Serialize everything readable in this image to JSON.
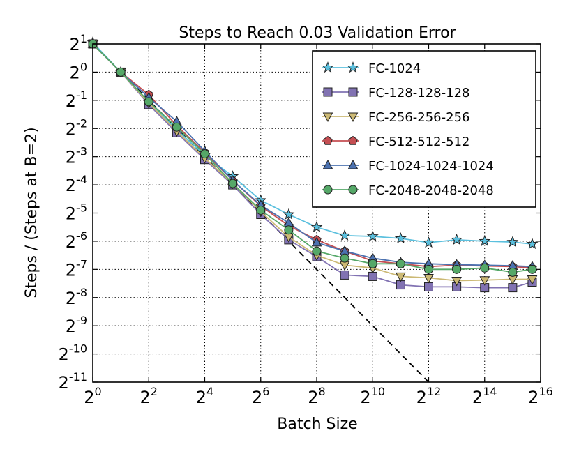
{
  "chart_data": {
    "type": "line",
    "title": "Steps to Reach 0.03 Validation Error",
    "xlabel": "Batch Size",
    "ylabel": "Steps / (Steps at B=2)",
    "x_scale": "log2",
    "y_scale": "log2",
    "xlim": [
      0,
      16
    ],
    "ylim": [
      -11,
      1
    ],
    "grid": true,
    "legend_position": "upper right",
    "x_tick_base": "2",
    "x_tick_exponents": [
      "0",
      "2",
      "4",
      "6",
      "8",
      "10",
      "12",
      "14",
      "16"
    ],
    "y_tick_base": "2",
    "y_tick_exponents": [
      "1",
      "0",
      "-1",
      "-2",
      "-3",
      "-4",
      "-5",
      "-6",
      "-7",
      "-8",
      "-9",
      "-10",
      "-11"
    ],
    "reference_line": {
      "style": "dashed",
      "color": "#000000",
      "x": [
        0,
        12
      ],
      "y": [
        1,
        -11
      ]
    },
    "x": [
      0,
      1,
      2,
      3,
      4,
      5,
      6,
      7,
      8,
      9,
      10,
      11,
      12,
      13,
      14,
      15,
      15.7
    ],
    "series": [
      {
        "name": "FC-1024",
        "color": "#5bc0de",
        "marker": "star",
        "values": [
          1.05,
          0,
          -1.05,
          -2.05,
          -2.95,
          -3.7,
          -4.55,
          -5.05,
          -5.5,
          -5.8,
          -5.83,
          -5.9,
          -6.05,
          -5.95,
          -6.0,
          -6.03,
          -6.1
        ]
      },
      {
        "name": "FC-128-128-128",
        "color": "#8172b2",
        "marker": "square",
        "values": [
          1.0,
          0,
          -1.15,
          -2.15,
          -3.1,
          -4.0,
          -5.05,
          -5.95,
          -6.55,
          -7.2,
          -7.25,
          -7.55,
          -7.62,
          -7.62,
          -7.65,
          -7.65,
          -7.45
        ]
      },
      {
        "name": "FC-256-256-256",
        "color": "#ccb974",
        "marker": "triangle-down",
        "values": [
          1.0,
          0,
          -1.1,
          -2.1,
          -3.05,
          -3.95,
          -4.95,
          -5.85,
          -6.5,
          -6.85,
          -6.95,
          -7.25,
          -7.3,
          -7.4,
          -7.38,
          -7.35,
          -7.35
        ]
      },
      {
        "name": "FC-512-512-512",
        "color": "#c44e52",
        "marker": "pentagon",
        "values": [
          1.0,
          0,
          -0.8,
          -1.9,
          -2.85,
          -3.85,
          -4.75,
          -5.45,
          -5.95,
          -6.35,
          -6.7,
          -6.8,
          -6.9,
          -6.85,
          -6.88,
          -6.9,
          -6.95
        ]
      },
      {
        "name": "FC-1024-1024-1024",
        "color": "#4c72b0",
        "marker": "triangle-up",
        "values": [
          1.0,
          0,
          -0.9,
          -1.75,
          -2.8,
          -3.85,
          -4.72,
          -5.35,
          -6.05,
          -6.35,
          -6.6,
          -6.75,
          -6.8,
          -6.83,
          -6.85,
          -6.87,
          -6.9
        ]
      },
      {
        "name": "FC-2048-2048-2048",
        "color": "#55a868",
        "marker": "circle",
        "values": [
          1.0,
          0,
          -1.05,
          -1.95,
          -2.9,
          -3.95,
          -4.9,
          -5.6,
          -6.35,
          -6.6,
          -6.8,
          -6.8,
          -7.0,
          -7.0,
          -6.95,
          -7.1,
          -7.0
        ]
      }
    ]
  }
}
